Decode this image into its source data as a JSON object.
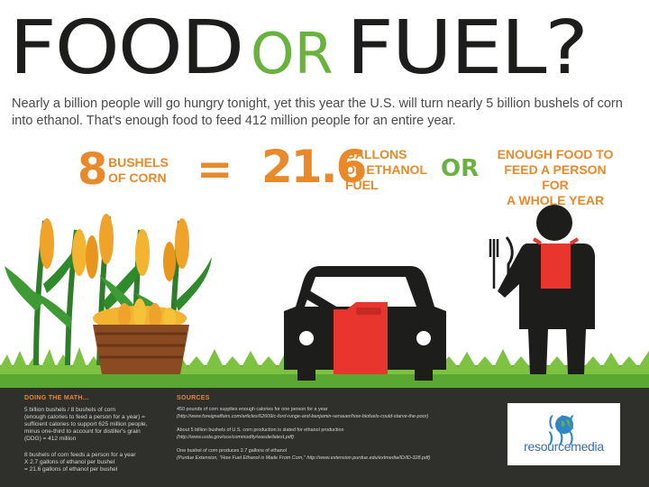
{
  "title": {
    "food": "FOOD",
    "or": "OR",
    "fuel": "FUEL?"
  },
  "subtitle": "Nearly a billion people will go hungry tonight, yet this year the U.S. will turn nearly 5 billion bushels of corn into ethanol. That's enough food to feed 412 million people for an entire year.",
  "equation": {
    "bushels_number": "8",
    "bushels_label_1": "BUSHELS",
    "bushels_label_2": "OF CORN",
    "equals": "=",
    "gallons_number": "21.6",
    "gallons_label_1": "GALLONS",
    "gallons_label_2": "OF ETHANOL",
    "gallons_label_3": "FUEL",
    "or": "OR",
    "food_label_1": "ENOUGH FOOD TO",
    "food_label_2": "FEED A PERSON FOR",
    "food_label_3": "A WHOLE YEAR"
  },
  "footer": {
    "math_heading": "DOING THE MATH...",
    "math_lines": [
      "5 billion bushels / 8 bushels of corn",
      "(enough calories to feed a person for a year) =",
      "sufficient calories to support 625 million people,",
      "minus one-third to account for distiller's grain",
      "(DDG) = 412 million",
      "",
      "8 bushels of corn feeds a person for a year",
      "X 2.7 gallons of ethanol per bushel",
      "= 21.6 gallons of ethanol per bushel"
    ],
    "sources_heading": "SOURCES",
    "sources_lines": [
      "450 pounds of corn supplies enough calories for one person for a year",
      "(http://www.foreignaffairs.com/articles/62609/c-ford-runge-and-benjamin-senauer/how-biofuels-could-starve-the-poor)",
      "",
      "About 5 billion bushels of U.S. corn production is slated for ethanol production",
      "(http://www.usda.gov/oce/commodity/wasde/latest.pdf)",
      "",
      "One bushel of corn produces 2.7 gallons of ethanol",
      "(Purdue Extension, \"How Fuel Ethanol is Made From Corn,\" http://www.extension.purdue.edu/extmedia/ID/ID-328.pdf)"
    ],
    "logo_waves": "((( )))",
    "logo_text": "resourcemedia"
  },
  "colors": {
    "orange": "#e8892b",
    "green": "#6ab23e",
    "dark": "#1d1d1b",
    "red": "#e8352e",
    "footer": "#2f2f2b"
  }
}
